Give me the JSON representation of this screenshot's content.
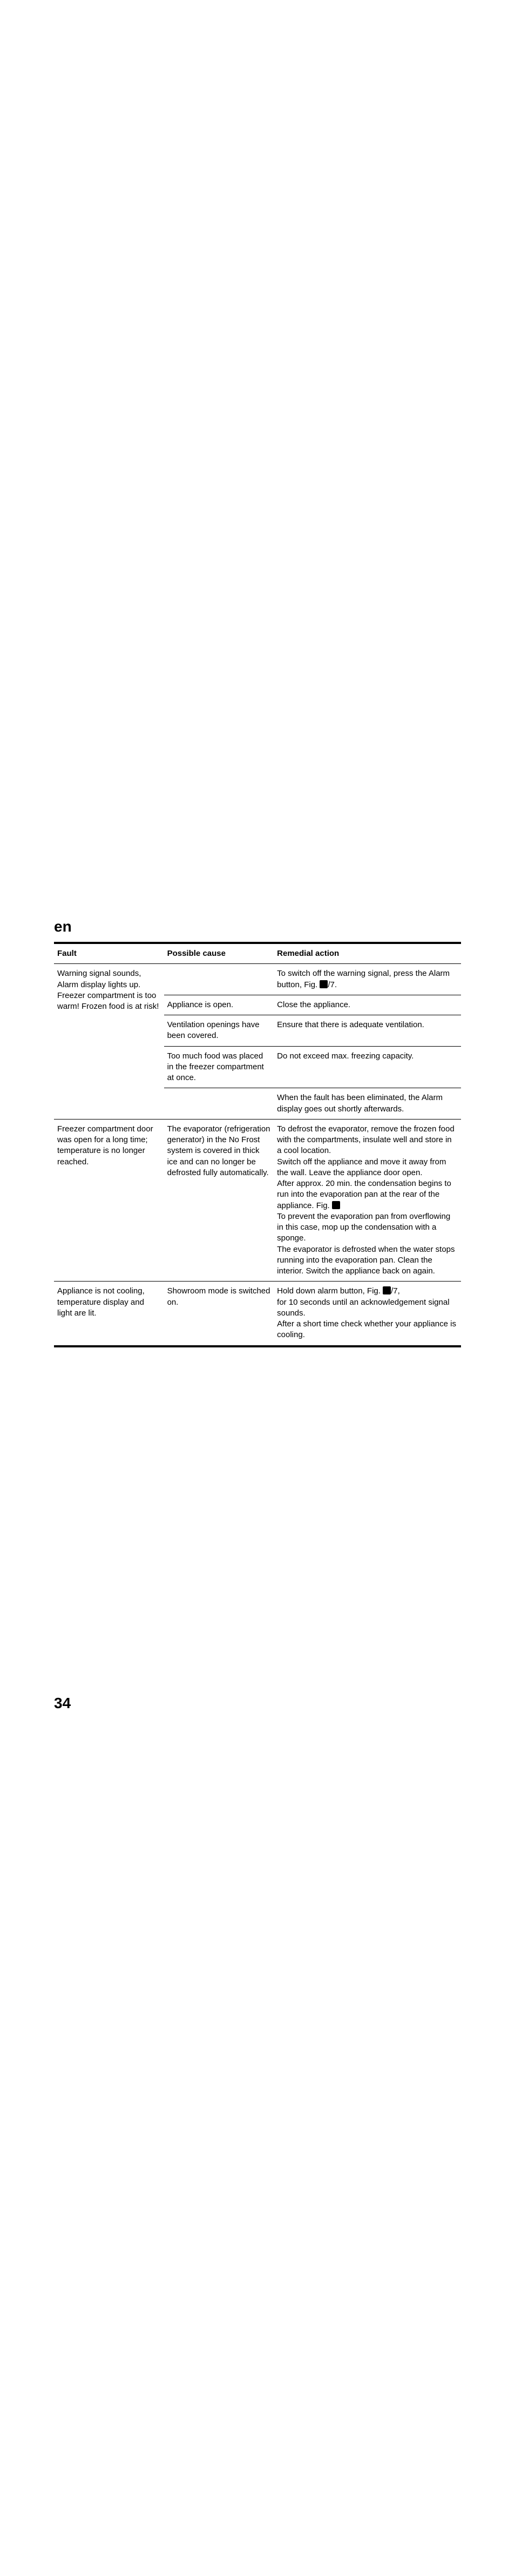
{
  "lang": "en",
  "pageNumber": "34",
  "headers": {
    "fault": "Fault",
    "cause": "Possible cause",
    "action": "Remedial action"
  },
  "section1": {
    "fault": "Warning signal sounds, Alarm display lights up.",
    "subFault": "Freezer compartment is too warm! Frozen food is at risk!",
    "r1": {
      "cause": "",
      "action_a": "To switch off the warning signal, press the Alarm button, Fig. ",
      "action_b": "/7."
    },
    "r2": {
      "cause": "Appliance is open.",
      "action": "Close the appliance."
    },
    "r3": {
      "cause": "Ventilation openings have been covered.",
      "action": "Ensure that there is adequate ventilation."
    },
    "r4": {
      "cause": "Too much food was placed in the freezer compartment at once.",
      "action": "Do not exceed max. freezing capacity."
    },
    "r5": {
      "cause": "",
      "action": "When the fault has been eliminated, the Alarm display goes out shortly afterwards."
    }
  },
  "section2": {
    "fault": "Freezer compartment door was open for a long time; temperature is no longer reached.",
    "cause": "The evaporator (refrigeration generator) in the No Frost system is covered in thick ice and can no longer be defrosted fully automatically.",
    "action_a": "To defrost the evaporator, remove the frozen food with the compartments, insulate well and store in a cool location.",
    "action_b": "Switch off the appliance and move it away from the wall. Leave the appliance door open.",
    "action_c_a": "After approx. 20 min. the condensation begins to run into the evaporation pan at the rear of the appliance. Fig. ",
    "action_c_b": "",
    "action_d": "To prevent the evaporation pan from overflowing in this case, mop up the condensation with a sponge.",
    "action_e": "The evaporator is defrosted when the water stops running into the evaporation pan. Clean the interior. Switch the appliance back on again."
  },
  "section3": {
    "fault": "Appliance is not cooling, temperature display and light are lit.",
    "cause": "Showroom mode is switched on.",
    "action_a_a": "Hold down alarm button, Fig. ",
    "action_a_b": "/7,",
    "action_b": "for 10 seconds until an acknowledgement signal sounds.",
    "action_c": "After a short time check whether your appliance is cooling."
  }
}
